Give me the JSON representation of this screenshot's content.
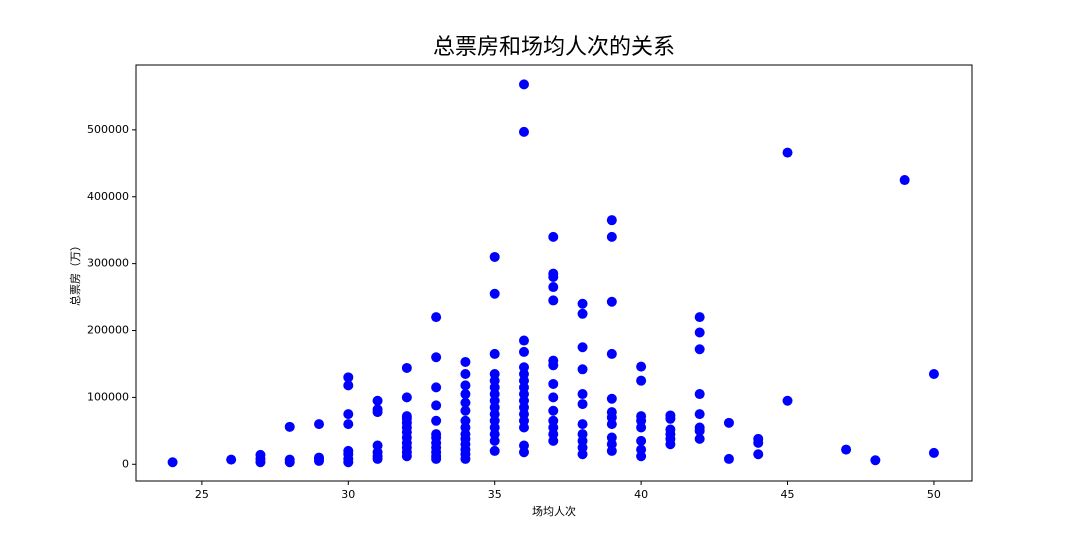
{
  "chart_data": {
    "type": "scatter",
    "title": "总票房和场均人次的关系",
    "x_label": "场均人次",
    "y_label": "总票房（万）",
    "color": "#0000ff",
    "x": [
      24,
      26,
      27,
      27,
      27,
      28,
      28,
      28,
      29,
      29,
      29,
      29,
      30,
      30,
      30,
      30,
      30,
      30,
      30,
      30,
      31,
      31,
      31,
      31,
      31,
      31,
      31,
      32,
      32,
      32,
      32,
      32,
      32,
      32,
      32,
      32,
      32,
      32,
      32,
      33,
      33,
      33,
      33,
      33,
      33,
      33,
      33,
      33,
      33,
      33,
      33,
      34,
      34,
      34,
      34,
      34,
      34,
      34,
      34,
      34,
      34,
      34,
      34,
      34,
      34,
      35,
      35,
      35,
      35,
      35,
      35,
      35,
      35,
      35,
      35,
      35,
      35,
      35,
      35,
      35,
      36,
      36,
      36,
      36,
      36,
      36,
      36,
      36,
      36,
      36,
      36,
      36,
      36,
      36,
      36,
      36,
      37,
      37,
      37,
      37,
      37,
      37,
      37,
      37,
      37,
      37,
      37,
      37,
      37,
      37,
      38,
      38,
      38,
      38,
      38,
      38,
      38,
      38,
      38,
      38,
      38,
      39,
      39,
      39,
      39,
      39,
      39,
      39,
      39,
      39,
      39,
      39,
      40,
      40,
      40,
      40,
      40,
      40,
      40,
      40,
      41,
      41,
      41,
      41,
      41,
      41,
      42,
      42,
      42,
      42,
      42,
      42,
      42,
      42,
      43,
      43,
      44,
      44,
      44,
      45,
      45,
      47,
      48,
      49,
      50,
      50
    ],
    "y": [
      3000,
      7000,
      3000,
      8000,
      14000,
      3000,
      7000,
      56000,
      5000,
      8000,
      10000,
      60000,
      3000,
      8000,
      15000,
      20000,
      60000,
      75000,
      118000,
      130000,
      8000,
      12000,
      18000,
      28000,
      78000,
      82000,
      95000,
      12000,
      18000,
      25000,
      32000,
      40000,
      48000,
      55000,
      62000,
      68000,
      72000,
      100000,
      144000,
      8000,
      12000,
      18000,
      25000,
      32000,
      40000,
      45000,
      65000,
      88000,
      115000,
      160000,
      220000,
      8000,
      15000,
      22000,
      30000,
      38000,
      45000,
      55000,
      65000,
      80000,
      92000,
      105000,
      118000,
      135000,
      153000,
      20000,
      35000,
      45000,
      55000,
      65000,
      75000,
      85000,
      95000,
      105000,
      115000,
      125000,
      135000,
      165000,
      255000,
      310000,
      18000,
      28000,
      55000,
      65000,
      75000,
      85000,
      95000,
      105000,
      115000,
      125000,
      135000,
      145000,
      168000,
      185000,
      497000,
      568000,
      35000,
      45000,
      55000,
      65000,
      80000,
      100000,
      120000,
      148000,
      155000,
      245000,
      265000,
      280000,
      285000,
      340000,
      15000,
      25000,
      35000,
      45000,
      60000,
      90000,
      105000,
      142000,
      175000,
      225000,
      240000,
      20000,
      30000,
      40000,
      60000,
      70000,
      78000,
      98000,
      165000,
      243000,
      340000,
      365000,
      12000,
      22000,
      35000,
      55000,
      65000,
      72000,
      125000,
      146000,
      30000,
      38000,
      45000,
      52000,
      68000,
      73000,
      38000,
      50000,
      55000,
      75000,
      105000,
      172000,
      197000,
      220000,
      8000,
      62000,
      15000,
      32000,
      38000,
      95000,
      466000,
      22000,
      6000,
      425000,
      17000,
      135000
    ],
    "xlim": [
      22.75,
      51.3
    ],
    "xticks": [
      25,
      30,
      35,
      40,
      45,
      50
    ],
    "ylim": [
      -25000,
      597000
    ],
    "yticks": [
      0,
      100000,
      200000,
      300000,
      400000,
      500000
    ]
  }
}
